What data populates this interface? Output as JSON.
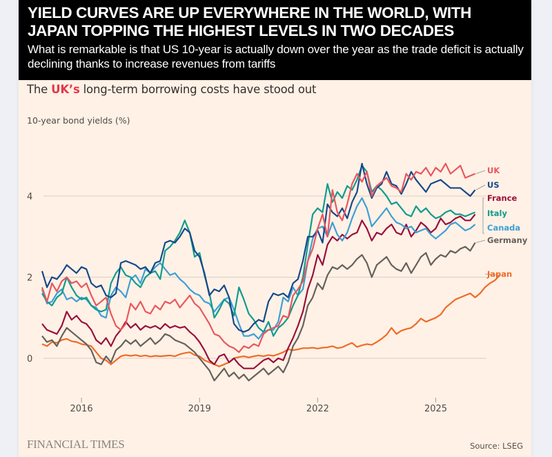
{
  "banner": {
    "headline": "YIELD CURVES ARE UP EVERYWHERE IN THE WORLD, WITH JAPAN TOPPING THE HIGHEST LEVELS IN TWO DECADES",
    "subhead": "What is remarkable is that US 10-year is actually down over the year as the trade deficit is actually declining thanks to increase revenues from tariffs"
  },
  "chart_title": {
    "prefix": "The ",
    "highlight": "UK’s",
    "suffix": " long-term borrowing costs have stood out"
  },
  "footer": {
    "publisher": "FINANCIAL TIMES",
    "source": "Source: LSEG"
  },
  "chart_data": {
    "type": "line",
    "title": "The UK’s long-term borrowing costs have stood out",
    "ylabel": "10-year bond yields (%)",
    "xlabel": "",
    "xlim": [
      2015.0,
      2026.2
    ],
    "ylim": [
      -1.0,
      5.0
    ],
    "yticks": [
      0,
      2,
      4
    ],
    "xticks": [
      2016,
      2019,
      2022,
      2025
    ],
    "grid": true,
    "legend": "right-end labels",
    "x_start": 2015.0,
    "x_step": 0.125,
    "series": [
      {
        "name": "Japan",
        "color": "#f06a28",
        "values": [
          0.35,
          0.3,
          0.4,
          0.38,
          0.45,
          0.48,
          0.42,
          0.4,
          0.35,
          0.33,
          0.3,
          0.15,
          0.0,
          -0.05,
          -0.15,
          -0.05,
          0.05,
          0.08,
          0.06,
          0.08,
          0.05,
          0.07,
          0.04,
          0.06,
          0.05,
          0.06,
          0.07,
          0.05,
          0.1,
          0.13,
          0.15,
          0.08,
          0.05,
          -0.05,
          -0.1,
          -0.15,
          -0.2,
          -0.15,
          -0.1,
          0.0,
          0.03,
          0.05,
          0.02,
          0.05,
          0.07,
          0.05,
          0.08,
          0.06,
          0.1,
          0.15,
          0.22,
          0.2,
          0.22,
          0.25,
          0.25,
          0.26,
          0.24,
          0.26,
          0.27,
          0.3,
          0.25,
          0.27,
          0.33,
          0.38,
          0.28,
          0.32,
          0.35,
          0.33,
          0.4,
          0.48,
          0.58,
          0.75,
          0.6,
          0.68,
          0.72,
          0.75,
          0.85,
          0.98,
          0.9,
          0.95,
          1.0,
          1.08,
          1.25,
          1.35,
          1.45,
          1.5,
          1.55,
          1.6,
          1.5,
          1.6,
          1.75,
          1.85,
          1.92,
          2.05
        ]
      },
      {
        "name": "Germany",
        "color": "#66605c",
        "values": [
          0.55,
          0.4,
          0.45,
          0.3,
          0.55,
          0.75,
          0.65,
          0.55,
          0.45,
          0.35,
          0.2,
          -0.1,
          -0.15,
          0.05,
          -0.1,
          0.2,
          0.3,
          0.45,
          0.35,
          0.45,
          0.3,
          0.4,
          0.5,
          0.35,
          0.45,
          0.6,
          0.55,
          0.45,
          0.4,
          0.35,
          0.25,
          0.15,
          0.0,
          -0.15,
          -0.3,
          -0.55,
          -0.4,
          -0.25,
          -0.45,
          -0.35,
          -0.5,
          -0.4,
          -0.55,
          -0.45,
          -0.35,
          -0.25,
          -0.4,
          -0.3,
          -0.2,
          -0.35,
          -0.1,
          0.3,
          0.5,
          0.8,
          1.3,
          1.5,
          1.85,
          1.7,
          2.05,
          2.25,
          2.2,
          2.3,
          2.2,
          2.3,
          2.45,
          2.55,
          2.35,
          2.0,
          2.3,
          2.4,
          2.5,
          2.3,
          2.2,
          2.15,
          2.35,
          2.1,
          2.3,
          2.5,
          2.6,
          2.3,
          2.45,
          2.55,
          2.5,
          2.65,
          2.6,
          2.7,
          2.75,
          2.65,
          2.85
        ]
      },
      {
        "name": "France",
        "color": "#990f3d",
        "values": [
          0.85,
          0.7,
          0.65,
          0.6,
          0.8,
          1.15,
          0.95,
          1.05,
          0.9,
          0.85,
          0.7,
          0.45,
          0.35,
          0.5,
          0.3,
          0.55,
          0.7,
          0.9,
          0.75,
          0.85,
          0.7,
          0.8,
          0.75,
          0.8,
          0.72,
          0.85,
          0.75,
          0.8,
          0.75,
          0.78,
          0.65,
          0.55,
          0.4,
          0.2,
          -0.05,
          -0.15,
          0.05,
          0.1,
          -0.1,
          0.0,
          -0.15,
          -0.25,
          -0.25,
          -0.25,
          -0.15,
          -0.05,
          0.0,
          -0.1,
          0.0,
          -0.05,
          0.25,
          0.5,
          0.8,
          1.15,
          1.7,
          2.05,
          2.55,
          2.3,
          2.8,
          3.0,
          2.9,
          3.05,
          2.95,
          3.05,
          3.1,
          3.4,
          3.2,
          2.9,
          3.1,
          3.05,
          3.2,
          3.3,
          3.1,
          3.05,
          3.3,
          3.0,
          3.15,
          3.35,
          3.25,
          3.1,
          3.2,
          3.45,
          3.3,
          3.35,
          3.45,
          3.5,
          3.4,
          3.4,
          3.55
        ]
      },
      {
        "name": "Canada",
        "color": "#3d9fd6",
        "values": [
          1.7,
          1.35,
          1.4,
          1.6,
          1.7,
          1.45,
          1.5,
          1.4,
          1.5,
          1.45,
          1.3,
          1.25,
          1.05,
          1.0,
          1.55,
          1.75,
          1.65,
          1.5,
          1.95,
          2.05,
          1.85,
          2.2,
          2.1,
          2.25,
          2.35,
          2.2,
          2.05,
          2.1,
          1.95,
          1.85,
          1.7,
          1.6,
          1.55,
          1.4,
          1.35,
          1.15,
          1.3,
          1.45,
          1.5,
          1.2,
          0.85,
          0.55,
          0.55,
          0.6,
          0.48,
          0.65,
          0.7,
          0.7,
          0.9,
          1.5,
          1.4,
          1.75,
          1.55,
          1.7,
          2.4,
          2.95,
          3.2,
          3.25,
          3.0,
          3.35,
          3.05,
          2.9,
          3.1,
          3.45,
          3.75,
          3.95,
          3.7,
          3.25,
          3.4,
          3.55,
          3.7,
          3.5,
          3.35,
          3.3,
          3.2,
          3.25,
          3.1,
          3.15,
          3.2,
          3.05,
          2.95,
          3.05,
          3.15,
          3.3,
          3.35,
          3.25,
          3.15,
          3.2,
          3.3
        ]
      },
      {
        "name": "Italy",
        "color": "#0f9b8e",
        "values": [
          1.6,
          1.4,
          1.3,
          1.5,
          1.6,
          2.0,
          1.75,
          1.55,
          1.45,
          1.5,
          1.3,
          1.2,
          1.15,
          1.2,
          1.85,
          2.1,
          2.25,
          2.05,
          2.0,
          1.85,
          1.75,
          2.0,
          2.1,
          2.15,
          1.95,
          2.65,
          2.75,
          2.9,
          3.1,
          3.4,
          3.1,
          2.5,
          2.6,
          2.05,
          1.6,
          1.0,
          1.2,
          1.45,
          1.35,
          1.05,
          1.75,
          1.45,
          1.1,
          0.95,
          0.75,
          0.65,
          0.9,
          0.55,
          0.75,
          0.85,
          1.0,
          1.3,
          1.55,
          2.0,
          2.8,
          3.55,
          3.7,
          3.6,
          4.3,
          3.85,
          4.1,
          3.95,
          4.25,
          4.15,
          4.4,
          4.75,
          4.6,
          4.1,
          4.25,
          4.15,
          4.0,
          3.8,
          3.85,
          3.7,
          3.55,
          3.5,
          3.75,
          3.6,
          3.7,
          3.55,
          3.45,
          3.5,
          3.6,
          3.65,
          3.55,
          3.55,
          3.5,
          3.55,
          3.6
        ]
      },
      {
        "name": "US",
        "color": "#17488a",
        "values": [
          2.15,
          1.75,
          2.0,
          1.95,
          2.1,
          2.3,
          2.2,
          2.1,
          2.25,
          2.2,
          1.85,
          1.75,
          1.8,
          1.55,
          1.5,
          1.6,
          2.35,
          2.4,
          2.35,
          2.3,
          2.2,
          2.25,
          2.1,
          2.35,
          2.4,
          2.85,
          2.9,
          2.85,
          3.0,
          3.2,
          3.1,
          2.65,
          2.5,
          2.1,
          1.55,
          1.7,
          1.65,
          1.8,
          1.5,
          0.85,
          0.7,
          0.65,
          0.7,
          0.85,
          0.95,
          0.9,
          1.4,
          1.6,
          1.55,
          1.6,
          1.5,
          1.85,
          1.95,
          2.4,
          3.0,
          3.0,
          3.15,
          2.85,
          3.8,
          3.6,
          3.5,
          3.7,
          3.45,
          3.85,
          4.1,
          4.8,
          4.3,
          3.95,
          4.2,
          4.3,
          4.6,
          4.3,
          4.25,
          4.05,
          4.3,
          4.6,
          4.4,
          4.25,
          4.1,
          4.3,
          4.35,
          4.4,
          4.3,
          4.2,
          4.2,
          4.2,
          4.1,
          4.0,
          4.15
        ]
      },
      {
        "name": "UK",
        "color": "#e8575f",
        "values": [
          1.75,
          1.4,
          1.85,
          1.65,
          1.9,
          2.0,
          1.85,
          1.9,
          1.75,
          1.85,
          1.55,
          1.3,
          1.4,
          1.5,
          1.1,
          0.8,
          0.7,
          0.85,
          1.35,
          1.2,
          1.4,
          1.15,
          1.1,
          1.3,
          1.2,
          1.4,
          1.35,
          1.45,
          1.25,
          1.4,
          1.55,
          1.35,
          1.25,
          1.05,
          0.85,
          0.6,
          0.55,
          0.4,
          0.3,
          0.25,
          0.15,
          0.3,
          0.25,
          0.35,
          0.3,
          0.6,
          0.7,
          0.75,
          0.8,
          1.05,
          1.0,
          1.55,
          1.7,
          1.9,
          2.4,
          2.7,
          3.2,
          3.55,
          3.0,
          4.15,
          3.6,
          3.4,
          3.8,
          4.3,
          4.55,
          4.35,
          4.6,
          4.0,
          4.25,
          4.35,
          4.45,
          4.25,
          4.2,
          4.1,
          4.55,
          4.4,
          4.6,
          4.55,
          4.7,
          4.5,
          4.7,
          4.6,
          4.8,
          4.55,
          4.65,
          4.75,
          4.45,
          4.5,
          4.55
        ]
      }
    ]
  }
}
